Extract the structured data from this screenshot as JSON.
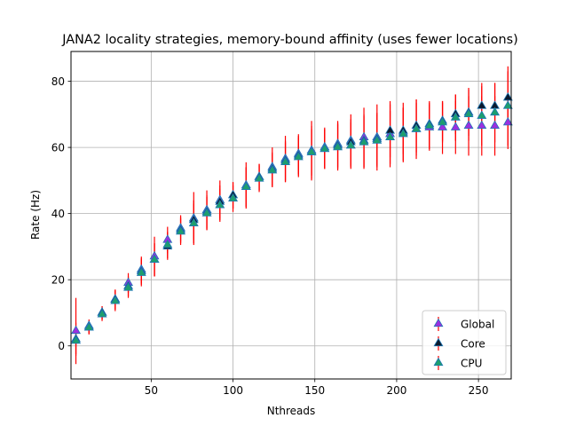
{
  "chart_data": {
    "type": "scatter",
    "title": "JANA2 locality strategies, memory-bound affinity (uses fewer locations)",
    "xlabel": "Nthreads",
    "ylabel": "Rate (Hz)",
    "xlim": [
      1,
      270
    ],
    "ylim": [
      -10,
      89
    ],
    "xticks": [
      50,
      100,
      150,
      200,
      250
    ],
    "yticks": [
      0,
      20,
      40,
      60,
      80
    ],
    "grid": true,
    "legend_position": "lower right",
    "x": [
      4,
      12,
      20,
      28,
      36,
      44,
      52,
      60,
      68,
      76,
      84,
      92,
      100,
      108,
      116,
      124,
      132,
      140,
      148,
      156,
      164,
      172,
      180,
      188,
      196,
      204,
      212,
      220,
      228,
      236,
      244,
      252,
      260,
      268
    ],
    "error_bar_color": "#ff0000",
    "series": [
      {
        "name": "Global",
        "marker": "triangle-up",
        "color": "#9b2fe0",
        "edge": "#1f77b4",
        "values": [
          4.5,
          6,
          10,
          14,
          19,
          23,
          27,
          32,
          35.5,
          38.5,
          41,
          44,
          45.5,
          48.5,
          51,
          54,
          56.5,
          58,
          59,
          60,
          61,
          62,
          63,
          63,
          64,
          64.5,
          65.5,
          66,
          66,
          66,
          66.5,
          66.5,
          66.5,
          67.5
        ],
        "errors": [
          10,
          2,
          2,
          3,
          3,
          4,
          6,
          4,
          4,
          8,
          6,
          6,
          4,
          7,
          4,
          6,
          7,
          6,
          9,
          6,
          7,
          8,
          9,
          10,
          10,
          9,
          9,
          7,
          8,
          8,
          9,
          9,
          9,
          8
        ]
      },
      {
        "name": "Core",
        "marker": "triangle-up",
        "color": "#0b1a2e",
        "edge": "#1f77b4",
        "values": [
          2,
          5.5,
          10,
          14,
          18,
          22.5,
          26,
          30,
          35,
          38,
          40.5,
          43.5,
          45.5,
          48,
          51,
          53.5,
          56,
          57.5,
          58.5,
          59.5,
          60.5,
          61.5,
          62,
          62.5,
          65,
          65,
          66.5,
          67,
          68,
          70,
          70.5,
          72.5,
          72.5,
          75
        ],
        "errors": [
          5,
          2,
          2,
          3,
          3,
          4,
          5,
          4,
          4,
          6,
          5,
          5,
          4,
          6,
          4,
          5,
          6,
          6,
          7,
          6,
          7,
          7,
          8,
          8,
          8,
          7,
          8,
          7,
          6,
          6,
          7,
          7,
          7,
          8
        ]
      },
      {
        "name": "CPU",
        "marker": "triangle-up",
        "color": "#1e9e6e",
        "edge": "#1f77b4",
        "values": [
          1.5,
          5.5,
          9.5,
          13.5,
          17.5,
          22,
          26,
          30.5,
          34.5,
          37,
          40,
          42.5,
          44.5,
          48,
          50.5,
          53,
          55.5,
          57,
          58.5,
          59.5,
          60,
          60.5,
          61.5,
          62,
          63,
          64,
          65.5,
          66.5,
          67.5,
          69,
          70,
          69.5,
          70.5,
          72.5
        ],
        "errors": [
          4,
          2,
          2,
          3,
          3,
          4,
          5,
          4,
          4,
          6,
          5,
          5,
          4,
          6,
          4,
          5,
          6,
          6,
          8,
          6,
          7,
          7,
          8,
          8,
          8,
          8,
          8,
          7,
          6,
          7,
          8,
          9,
          9,
          12
        ]
      }
    ]
  }
}
